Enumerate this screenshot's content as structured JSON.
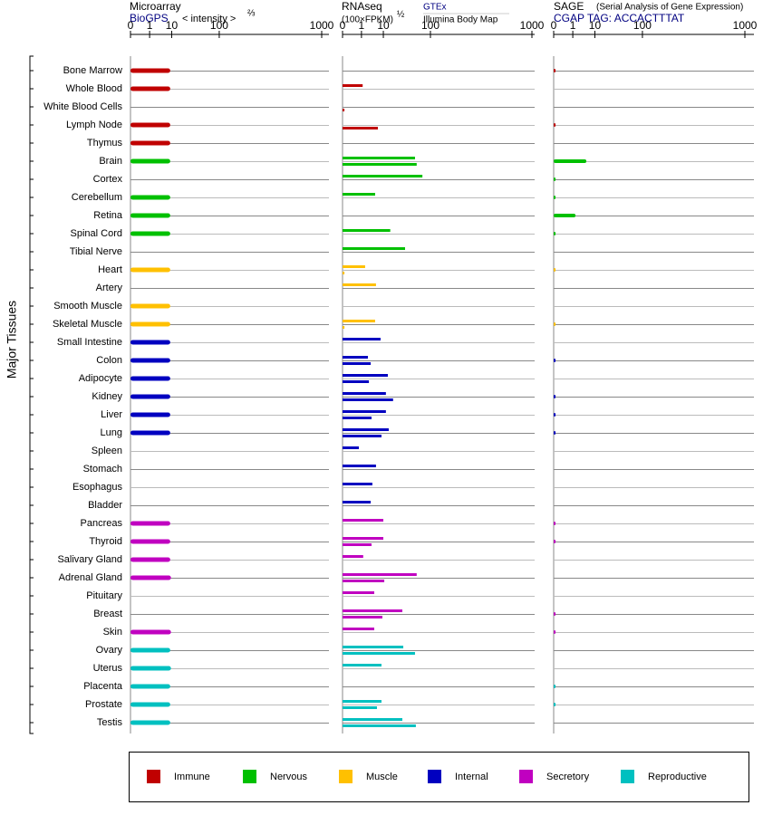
{
  "chart_data": {
    "type": "bar",
    "y_label": "Major Tissues",
    "scale": "cbrt",
    "groups": [
      {
        "name": "Immune",
        "color": "#c00000",
        "tissues": [
          "Bone Marrow",
          "Whole Blood",
          "White Blood Cells",
          "Lymph Node",
          "Thymus"
        ]
      },
      {
        "name": "Nervous",
        "color": "#00c000",
        "tissues": [
          "Brain",
          "Cortex",
          "Cerebellum",
          "Retina",
          "Spinal Cord",
          "Tibial Nerve"
        ]
      },
      {
        "name": "Muscle",
        "color": "#ffc000",
        "tissues": [
          "Heart",
          "Artery",
          "Smooth Muscle",
          "Skeletal Muscle"
        ]
      },
      {
        "name": "Internal",
        "color": "#0000c0",
        "tissues": [
          "Small Intestine",
          "Colon",
          "Adipocyte",
          "Kidney",
          "Liver",
          "Lung",
          "Spleen",
          "Stomach",
          "Esophagus",
          "Bladder"
        ]
      },
      {
        "name": "Secretory",
        "color": "#c000c0",
        "tissues": [
          "Pancreas",
          "Thyroid",
          "Salivary Gland",
          "Adrenal Gland",
          "Pituitary",
          "Breast",
          "Skin"
        ]
      },
      {
        "name": "Reproductive",
        "color": "#00c0c0",
        "tissues": [
          "Ovary",
          "Uterus",
          "Placenta",
          "Prostate",
          "Testis"
        ]
      }
    ],
    "panels": [
      {
        "title": "Microarray",
        "axis_label": "< intensity >",
        "exponent": "⅔",
        "xlim": [
          0,
          1000
        ],
        "xticks": [
          0,
          1,
          10,
          100,
          1000
        ],
        "series": [
          {
            "name": "BioGPS",
            "values": [
              9,
              9,
              null,
              9,
              9,
              9,
              null,
              9,
              9,
              9,
              null,
              9,
              null,
              9,
              9,
              9,
              9,
              9,
              9,
              9,
              9,
              null,
              null,
              null,
              null,
              9,
              9,
              9,
              9.5,
              null,
              null,
              9.5,
              9,
              9.5,
              9,
              9,
              9
            ]
          }
        ]
      },
      {
        "title": "RNAseq",
        "axis_label": "(100×FPKM)",
        "exponent": "½",
        "xlim": [
          0,
          1000
        ],
        "xticks": [
          0,
          1,
          10,
          100,
          1000
        ],
        "series": [
          {
            "name": "GTEx",
            "values": [
              null,
              1.2,
              null,
              null,
              null,
              56,
              75,
              5.1,
              null,
              16,
              36,
              1.7,
              5.5,
              null,
              5.1,
              8.1,
              2.4,
              13.7,
              12,
              12,
              14.5,
              0.64,
              5.5,
              3.9,
              3.3,
              10,
              10,
              1.3,
              60,
              4.7,
              31.5,
              4.7,
              33,
              8.7,
              null,
              8.7,
              31.5
            ]
          },
          {
            "name": "Illumina Body Map",
            "values": [
              null,
              null,
              0.001,
              6.5,
              null,
              60,
              null,
              null,
              null,
              null,
              null,
              0.001,
              null,
              null,
              0.001,
              null,
              3.3,
              2.7,
              19,
              3.6,
              8.7,
              null,
              null,
              null,
              null,
              null,
              3.6,
              null,
              10.7,
              null,
              9.3,
              null,
              56,
              null,
              null,
              6,
              58
            ]
          }
        ]
      },
      {
        "title": "SAGE",
        "note": "(Serial Analysis of Gene Expression)",
        "xlim": [
          0,
          1000
        ],
        "xticks": [
          0,
          1,
          10,
          100,
          1000
        ],
        "series": [
          {
            "name": "CGAP TAG: ACCACTTTAT",
            "values": [
              0.001,
              null,
              null,
              0.001,
              null,
              5,
              0.001,
              0.001,
              1.5,
              0.001,
              null,
              0.001,
              null,
              null,
              0.001,
              null,
              0.001,
              null,
              0.001,
              0.001,
              0.001,
              null,
              null,
              null,
              null,
              0.001,
              0.001,
              null,
              null,
              null,
              0.001,
              0.001,
              null,
              null,
              0.001,
              0.001,
              null
            ]
          }
        ]
      }
    ]
  }
}
